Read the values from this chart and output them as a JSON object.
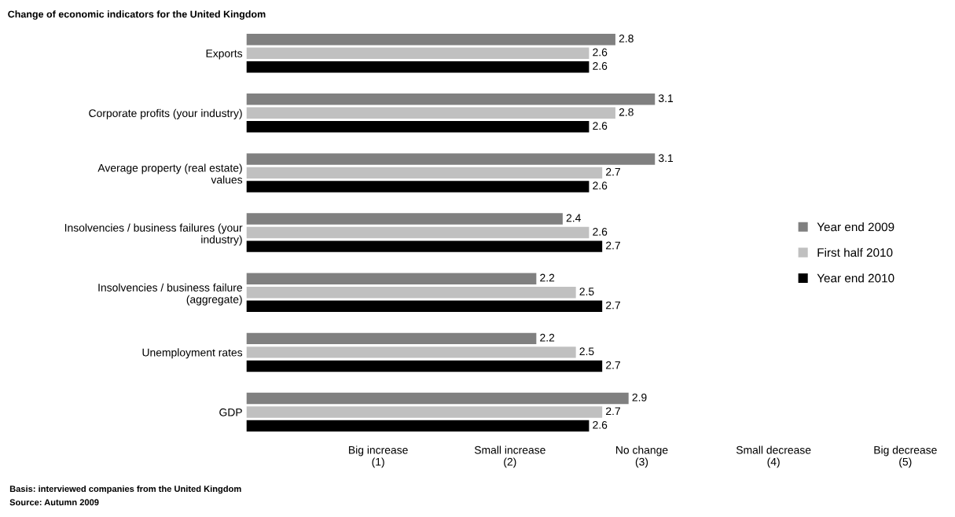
{
  "chart_data": {
    "type": "bar",
    "orientation": "horizontal",
    "title": "Change of economic indicators for the United Kingdom",
    "categories": [
      "Exports",
      "Corporate profits (your industry)",
      "Average property (real estate)\nvalues",
      "Insolvencies / business failures (your\nindustry)",
      "Insolvencies / business failure\n(aggregate)",
      "Unemployment rates",
      "GDP"
    ],
    "series": [
      {
        "name": "Year end 2009",
        "color": "#808080",
        "values": [
          2.8,
          3.1,
          3.1,
          2.4,
          2.2,
          2.2,
          2.9
        ]
      },
      {
        "name": "First half 2010",
        "color": "#c0c0c0",
        "values": [
          2.6,
          2.8,
          2.7,
          2.6,
          2.5,
          2.5,
          2.7
        ]
      },
      {
        "name": "Year end 2010",
        "color": "#000000",
        "values": [
          2.6,
          2.6,
          2.6,
          2.7,
          2.7,
          2.7,
          2.6
        ]
      }
    ],
    "xlim": [
      0,
      5
    ],
    "xticks": [
      {
        "value": 1,
        "label": "Big increase\n(1)"
      },
      {
        "value": 2,
        "label": "Small increase\n(2)"
      },
      {
        "value": 3,
        "label": "No change\n(3)"
      },
      {
        "value": 4,
        "label": "Small decrease\n(4)"
      },
      {
        "value": 5,
        "label": "Big decrease\n(5)"
      }
    ],
    "data_labels": true,
    "grid": false,
    "legend": "right",
    "annotations": [
      "Basis: interviewed companies from the United Kingdom",
      "Source: Autumn 2009"
    ]
  }
}
